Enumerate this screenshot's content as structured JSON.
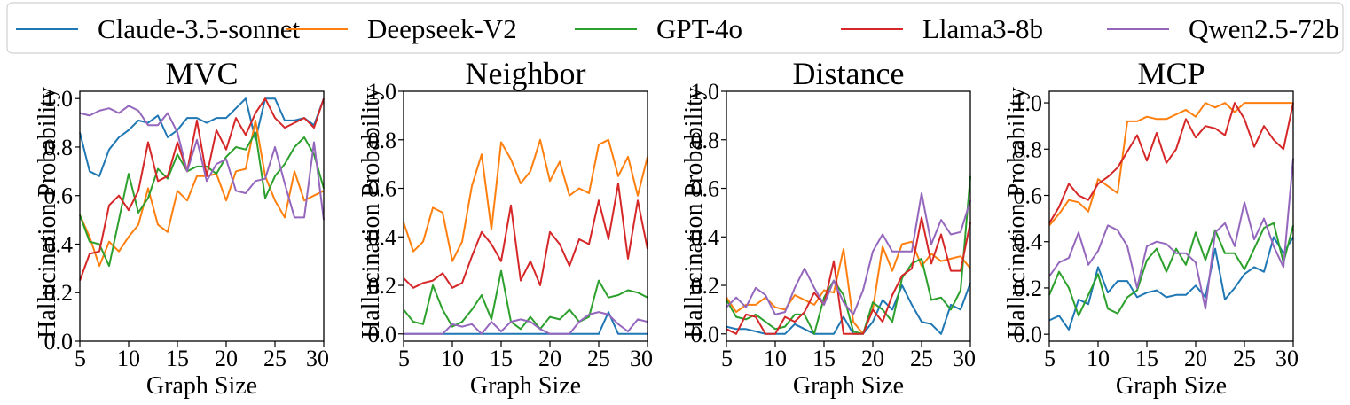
{
  "chart_data": {
    "type": "line",
    "x": [
      5,
      6,
      7,
      8,
      9,
      10,
      11,
      12,
      13,
      14,
      15,
      16,
      17,
      18,
      19,
      20,
      21,
      22,
      23,
      24,
      25,
      26,
      27,
      28,
      29,
      30
    ],
    "xlabel": "Graph Size",
    "ylabel": "Hallucination Probability",
    "xlim": [
      5,
      30
    ],
    "xticks": [
      "5",
      "10",
      "15",
      "20",
      "25",
      "30"
    ],
    "legend": [
      {
        "name": "Claude-3.5-sonnet",
        "color": "#1f77b4"
      },
      {
        "name": "Deepseek-V2",
        "color": "#ff7f0e"
      },
      {
        "name": "GPT-4o",
        "color": "#2ca02c"
      },
      {
        "name": "Llama3-8b",
        "color": "#d62728"
      },
      {
        "name": "Qwen2.5-72b",
        "color": "#9467bd"
      }
    ],
    "panels": [
      {
        "title": "MVC",
        "ylim": [
          0,
          1.03
        ],
        "yticks": [
          "0.0",
          "0.2",
          "0.4",
          "0.6",
          "0.8",
          "1.0"
        ],
        "series": [
          {
            "name": "Claude-3.5-sonnet",
            "values": [
              0.86,
              0.7,
              0.68,
              0.79,
              0.84,
              0.87,
              0.91,
              0.9,
              0.93,
              0.84,
              0.87,
              0.92,
              0.92,
              0.9,
              0.92,
              0.92,
              0.96,
              1.0,
              0.83,
              1.0,
              1.0,
              0.91,
              0.91,
              0.92,
              0.89,
              1.0
            ]
          },
          {
            "name": "Deepseek-V2",
            "values": [
              0.52,
              0.43,
              0.31,
              0.41,
              0.37,
              0.43,
              0.48,
              0.63,
              0.48,
              0.45,
              0.62,
              0.58,
              0.68,
              0.68,
              0.69,
              0.58,
              0.7,
              0.71,
              0.91,
              0.68,
              0.58,
              0.51,
              0.7,
              0.58,
              0.6,
              0.62
            ]
          },
          {
            "name": "GPT-4o",
            "values": [
              0.52,
              0.41,
              0.4,
              0.31,
              0.5,
              0.69,
              0.53,
              0.59,
              0.71,
              0.67,
              0.77,
              0.7,
              0.72,
              0.72,
              0.69,
              0.76,
              0.8,
              0.79,
              0.86,
              0.59,
              0.68,
              0.73,
              0.8,
              0.84,
              0.77,
              0.63
            ]
          },
          {
            "name": "Llama3-8b",
            "values": [
              0.25,
              0.36,
              0.37,
              0.56,
              0.6,
              0.54,
              0.62,
              0.82,
              0.66,
              0.68,
              0.82,
              0.7,
              0.91,
              0.68,
              0.87,
              0.79,
              0.92,
              0.85,
              0.94,
              1.0,
              0.92,
              0.88,
              0.9,
              0.92,
              0.88,
              1.0
            ]
          },
          {
            "name": "Qwen2.5-72b",
            "values": [
              0.94,
              0.93,
              0.95,
              0.96,
              0.94,
              0.97,
              0.95,
              0.89,
              0.89,
              0.94,
              0.86,
              0.7,
              0.83,
              0.66,
              0.73,
              0.75,
              0.62,
              0.61,
              0.66,
              0.67,
              0.8,
              0.65,
              0.51,
              0.51,
              0.82,
              0.5
            ]
          }
        ]
      },
      {
        "title": "Neighbor",
        "ylim": [
          -0.03,
          1.0
        ],
        "yticks": [
          "0.0",
          "0.2",
          "0.4",
          "0.6",
          "0.8",
          "1.0"
        ],
        "series": [
          {
            "name": "Claude-3.5-sonnet",
            "values": [
              0,
              0,
              0,
              0,
              0,
              0,
              0,
              0,
              0,
              0,
              0,
              0,
              0,
              0,
              0,
              0,
              0,
              0,
              0,
              0,
              0,
              0.09,
              0,
              0,
              0,
              0
            ]
          },
          {
            "name": "Deepseek-V2",
            "values": [
              0.46,
              0.34,
              0.38,
              0.52,
              0.5,
              0.3,
              0.38,
              0.61,
              0.74,
              0.43,
              0.79,
              0.72,
              0.62,
              0.67,
              0.8,
              0.63,
              0.71,
              0.57,
              0.6,
              0.58,
              0.78,
              0.8,
              0.65,
              0.73,
              0.57,
              0.73
            ]
          },
          {
            "name": "GPT-4o",
            "values": [
              0.1,
              0.05,
              0.04,
              0.2,
              0.1,
              0.03,
              0.05,
              0.1,
              0.16,
              0.06,
              0.26,
              0.05,
              0.02,
              0.07,
              0.02,
              0.07,
              0.06,
              0.1,
              0.05,
              0.07,
              0.22,
              0.15,
              0.16,
              0.18,
              0.17,
              0.15
            ]
          },
          {
            "name": "Llama3-8b",
            "values": [
              0.23,
              0.19,
              0.21,
              0.22,
              0.25,
              0.19,
              0.21,
              0.32,
              0.42,
              0.37,
              0.3,
              0.53,
              0.22,
              0.3,
              0.2,
              0.42,
              0.37,
              0.28,
              0.39,
              0.37,
              0.55,
              0.39,
              0.62,
              0.31,
              0.55,
              0.35
            ]
          },
          {
            "name": "Qwen2.5-72b",
            "values": [
              0,
              0,
              0,
              0,
              0,
              0.04,
              0.03,
              0.04,
              0,
              0.05,
              0.01,
              0.05,
              0.06,
              0.05,
              0.02,
              0,
              0,
              0,
              0.05,
              0.08,
              0.09,
              0.08,
              0.04,
              0.01,
              0.06,
              0.05
            ]
          }
        ]
      },
      {
        "title": "Distance",
        "ylim": [
          -0.03,
          1.0
        ],
        "yticks": [
          "0.0",
          "0.2",
          "0.4",
          "0.6",
          "0.8",
          "1.0"
        ],
        "series": [
          {
            "name": "Claude-3.5-sonnet",
            "values": [
              0.03,
              0.02,
              0.02,
              0.01,
              0.0,
              0.0,
              0.0,
              0.04,
              0.02,
              0.0,
              0.0,
              0.0,
              0.07,
              0.0,
              0.0,
              0.05,
              0.14,
              0.1,
              0.2,
              0.12,
              0.05,
              0.04,
              0.0,
              0.12,
              0.1,
              0.21
            ]
          },
          {
            "name": "Deepseek-V2",
            "values": [
              0.15,
              0.09,
              0.12,
              0.12,
              0.15,
              0.11,
              0.1,
              0.16,
              0.14,
              0.12,
              0.18,
              0.17,
              0.35,
              0.05,
              0.0,
              0.1,
              0.36,
              0.26,
              0.37,
              0.38,
              0.28,
              0.33,
              0.3,
              0.31,
              0.32,
              0.27
            ]
          },
          {
            "name": "GPT-4o",
            "values": [
              0.14,
              0.07,
              0.06,
              0.08,
              0.05,
              0.02,
              0.03,
              0.08,
              0.08,
              0.0,
              0.15,
              0.22,
              0.16,
              0.01,
              0.0,
              0.13,
              0.1,
              0.05,
              0.23,
              0.29,
              0.31,
              0.14,
              0.15,
              0.1,
              0.18,
              0.65
            ]
          },
          {
            "name": "Llama3-8b",
            "values": [
              0.02,
              0.0,
              0.08,
              0.07,
              0.0,
              0.0,
              0.07,
              0.05,
              0.09,
              0.17,
              0.12,
              0.3,
              0.0,
              0.0,
              0.0,
              0.1,
              0.05,
              0.16,
              0.24,
              0.27,
              0.48,
              0.29,
              0.41,
              0.26,
              0.26,
              0.46
            ]
          },
          {
            "name": "Qwen2.5-72b",
            "values": [
              0.11,
              0.15,
              0.11,
              0.19,
              0.16,
              0.08,
              0.09,
              0.19,
              0.27,
              0.19,
              0.12,
              0.22,
              0.13,
              0.08,
              0.18,
              0.34,
              0.41,
              0.34,
              0.34,
              0.34,
              0.58,
              0.37,
              0.47,
              0.41,
              0.42,
              0.55
            ]
          }
        ]
      },
      {
        "title": "MCP",
        "ylim": [
          -0.03,
          1.05
        ],
        "yticks": [
          "0.0",
          "0.2",
          "0.4",
          "0.6",
          "0.8",
          "1.0"
        ],
        "series": [
          {
            "name": "Claude-3.5-sonnet",
            "values": [
              0.06,
              0.08,
              0.02,
              0.15,
              0.13,
              0.29,
              0.18,
              0.23,
              0.23,
              0.16,
              0.18,
              0.19,
              0.16,
              0.17,
              0.17,
              0.21,
              0.16,
              0.37,
              0.15,
              0.2,
              0.26,
              0.29,
              0.27,
              0.42,
              0.35,
              0.42
            ]
          },
          {
            "name": "Deepseek-V2",
            "values": [
              0.47,
              0.52,
              0.58,
              0.57,
              0.53,
              0.67,
              0.64,
              0.61,
              0.92,
              0.92,
              0.94,
              0.93,
              0.93,
              0.95,
              0.97,
              0.94,
              1.0,
              0.98,
              1.0,
              0.96,
              1.0,
              1.0,
              1.0,
              1.0,
              1.0,
              1.0
            ]
          },
          {
            "name": "GPT-4o",
            "values": [
              0.17,
              0.27,
              0.2,
              0.08,
              0.17,
              0.26,
              0.11,
              0.09,
              0.16,
              0.19,
              0.32,
              0.37,
              0.27,
              0.37,
              0.3,
              0.44,
              0.32,
              0.45,
              0.35,
              0.35,
              0.28,
              0.37,
              0.46,
              0.48,
              0.31,
              0.47
            ]
          },
          {
            "name": "Llama3-8b",
            "values": [
              0.48,
              0.55,
              0.65,
              0.6,
              0.58,
              0.65,
              0.68,
              0.72,
              0.79,
              0.86,
              0.75,
              0.87,
              0.74,
              0.8,
              0.93,
              0.85,
              0.9,
              0.89,
              0.86,
              1.0,
              0.93,
              0.81,
              0.9,
              0.84,
              0.8,
              1.0
            ]
          },
          {
            "name": "Qwen2.5-72b",
            "values": [
              0.25,
              0.31,
              0.33,
              0.44,
              0.3,
              0.36,
              0.47,
              0.45,
              0.38,
              0.2,
              0.38,
              0.4,
              0.39,
              0.35,
              0.35,
              0.31,
              0.11,
              0.44,
              0.48,
              0.38,
              0.57,
              0.41,
              0.5,
              0.38,
              0.29,
              0.76
            ]
          }
        ]
      }
    ]
  }
}
